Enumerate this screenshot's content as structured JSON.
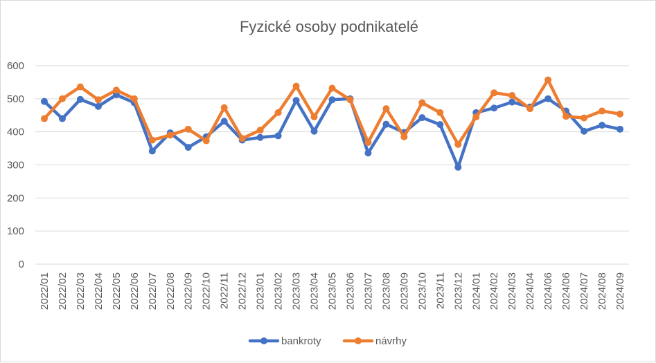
{
  "chart_data": {
    "type": "line",
    "title": "Fyzické osoby podnikatelé",
    "categories": [
      "2022/01",
      "2022/02",
      "2022/03",
      "2022/04",
      "2022/05",
      "2022/06",
      "2022/07",
      "2022/08",
      "2022/09",
      "2022/10",
      "2022/11",
      "2022/12",
      "2023/01",
      "2023/02",
      "2023/03",
      "2023/04",
      "2023/05",
      "2023/06",
      "2023/07",
      "2023/08",
      "2023/09",
      "2023/10",
      "2023/11",
      "2023/12",
      "2024/01",
      "2024/02",
      "2024/03",
      "2024/04",
      "2024/06",
      "2024/06",
      "2024/07",
      "2024/08",
      "2024/09"
    ],
    "series": [
      {
        "name": "bankroty",
        "color": "#4472c4",
        "values": [
          492,
          440,
          498,
          477,
          512,
          488,
          342,
          397,
          353,
          385,
          432,
          375,
          383,
          388,
          495,
          402,
          497,
          500,
          336,
          423,
          398,
          443,
          422,
          293,
          458,
          472,
          490,
          475,
          500,
          463,
          402,
          420,
          408
        ]
      },
      {
        "name": "návrhy",
        "color": "#ed7d31",
        "values": [
          440,
          500,
          536,
          497,
          526,
          500,
          375,
          390,
          408,
          373,
          473,
          380,
          405,
          458,
          538,
          445,
          532,
          497,
          368,
          470,
          385,
          488,
          458,
          362,
          445,
          518,
          510,
          470,
          557,
          447,
          442,
          463,
          454
        ]
      }
    ],
    "ylim": [
      0,
      600
    ],
    "yticks": [
      "0",
      "100",
      "200",
      "300",
      "400",
      "500",
      "600"
    ],
    "grid": true,
    "legend": "bottom"
  }
}
